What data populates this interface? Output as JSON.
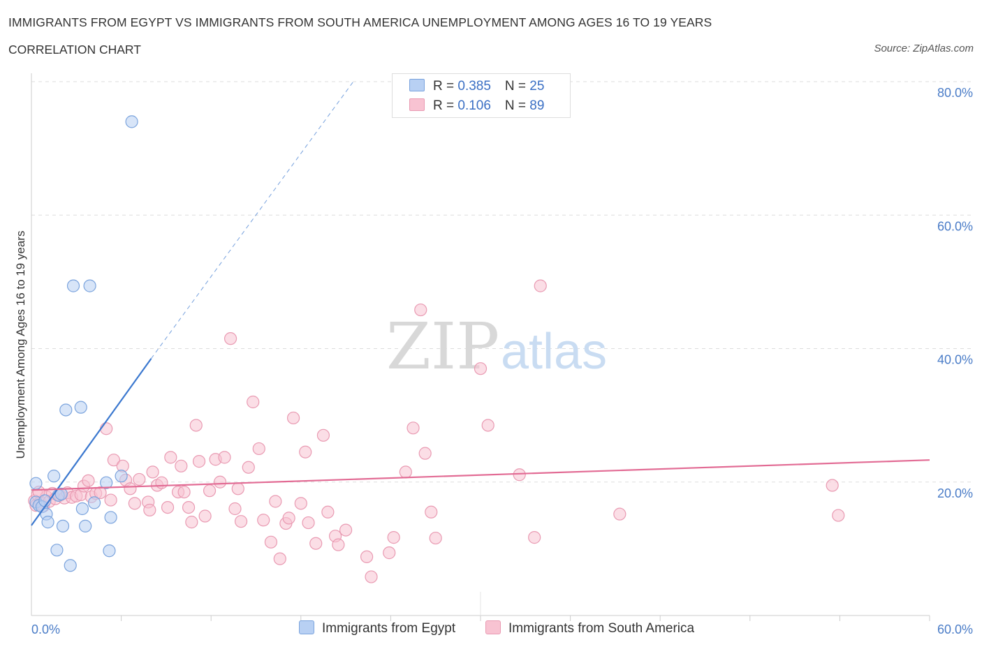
{
  "header": {
    "title": "IMMIGRANTS FROM EGYPT VS IMMIGRANTS FROM SOUTH AMERICA UNEMPLOYMENT AMONG AGES 16 TO 19 YEARS",
    "subtitle": "CORRELATION CHART",
    "source": "Source: ZipAtlas.com"
  },
  "watermark": {
    "zip": "ZIP",
    "atlas": "atlas"
  },
  "legend": {
    "egypt": {
      "r_label": "R = ",
      "r_value": "0.385",
      "n_label": "N = ",
      "n_value": "25"
    },
    "south_america": {
      "r_label": "R = ",
      "r_value": "0.106",
      "n_label": "N = ",
      "n_value": "89"
    }
  },
  "colors": {
    "egypt_fill": "#b8d0f3",
    "egypt_stroke": "#7aa3dd",
    "egypt_line": "#3b78cf",
    "sa_fill": "#f8c3d2",
    "sa_stroke": "#e99ab2",
    "sa_line": "#e26b94",
    "tick": "#4a7cc7",
    "grid": "#dddddd"
  },
  "chart_data": {
    "type": "scatter",
    "title": "IMMIGRANTS FROM EGYPT VS IMMIGRANTS FROM SOUTH AMERICA UNEMPLOYMENT AMONG AGES 16 TO 19 YEARS",
    "xlabel": "",
    "ylabel": "Unemployment Among Ages 16 to 19 years",
    "xlim": [
      0,
      60
    ],
    "ylim": [
      0,
      80
    ],
    "x_tick_labels": [
      "0.0%",
      "60.0%"
    ],
    "y_tick_labels": [
      "20.0%",
      "40.0%",
      "60.0%",
      "80.0%"
    ],
    "y_ticks": [
      20,
      40,
      60,
      80
    ],
    "legend_position": "top-center",
    "series": [
      {
        "name": "Immigrants from Egypt",
        "r": 0.385,
        "n": 25,
        "trend": {
          "x0": 0,
          "y0": 13.5,
          "x1": 8,
          "y1": 38.5,
          "dashed_to_x": 21.5,
          "dashed_to_y": 80
        },
        "points": [
          [
            0.3,
            19.8
          ],
          [
            0.3,
            17.0
          ],
          [
            0.5,
            16.5
          ],
          [
            0.7,
            16.3
          ],
          [
            1.0,
            15.2
          ],
          [
            1.1,
            14.0
          ],
          [
            1.5,
            20.9
          ],
          [
            1.7,
            9.8
          ],
          [
            2.1,
            13.4
          ],
          [
            2.3,
            30.8
          ],
          [
            2.6,
            7.5
          ],
          [
            2.8,
            49.4
          ],
          [
            3.3,
            31.2
          ],
          [
            3.4,
            16.0
          ],
          [
            3.6,
            13.4
          ],
          [
            3.9,
            49.4
          ],
          [
            4.2,
            16.9
          ],
          [
            5.0,
            19.9
          ],
          [
            5.2,
            9.7
          ],
          [
            5.3,
            14.7
          ],
          [
            6.0,
            20.9
          ],
          [
            6.7,
            74.0
          ],
          [
            1.8,
            18.0
          ],
          [
            2.0,
            18.2
          ],
          [
            0.9,
            17.2
          ]
        ]
      },
      {
        "name": "Immigrants from South America",
        "r": 0.106,
        "n": 89,
        "trend": {
          "x0": 0,
          "y0": 18.8,
          "x1": 60,
          "y1": 23.3
        },
        "points": [
          [
            0.2,
            17.2
          ],
          [
            0.3,
            16.5
          ],
          [
            0.4,
            18.1
          ],
          [
            0.6,
            17.0
          ],
          [
            0.8,
            16.4
          ],
          [
            1.0,
            17.8
          ],
          [
            1.2,
            17.1
          ],
          [
            1.4,
            18.3
          ],
          [
            1.6,
            17.5
          ],
          [
            1.9,
            18.0
          ],
          [
            2.2,
            17.6
          ],
          [
            2.4,
            18.4
          ],
          [
            2.7,
            17.7
          ],
          [
            3.0,
            17.9
          ],
          [
            3.3,
            18.1
          ],
          [
            3.5,
            19.4
          ],
          [
            3.8,
            20.2
          ],
          [
            4.0,
            17.8
          ],
          [
            4.3,
            18.3
          ],
          [
            4.6,
            18.4
          ],
          [
            5.0,
            28.0
          ],
          [
            5.3,
            17.3
          ],
          [
            5.5,
            23.3
          ],
          [
            6.1,
            22.4
          ],
          [
            6.3,
            20.3
          ],
          [
            6.6,
            19.0
          ],
          [
            6.9,
            16.8
          ],
          [
            7.2,
            20.4
          ],
          [
            7.8,
            17.0
          ],
          [
            7.9,
            15.8
          ],
          [
            8.1,
            21.5
          ],
          [
            8.4,
            19.5
          ],
          [
            8.7,
            19.9
          ],
          [
            9.1,
            16.2
          ],
          [
            9.3,
            23.7
          ],
          [
            9.8,
            18.5
          ],
          [
            10.0,
            22.4
          ],
          [
            10.2,
            18.5
          ],
          [
            10.5,
            16.2
          ],
          [
            10.7,
            14.0
          ],
          [
            11.0,
            28.5
          ],
          [
            11.2,
            23.1
          ],
          [
            11.6,
            14.9
          ],
          [
            11.9,
            18.7
          ],
          [
            12.3,
            23.4
          ],
          [
            12.6,
            20.0
          ],
          [
            12.9,
            23.7
          ],
          [
            13.3,
            41.5
          ],
          [
            13.6,
            16.0
          ],
          [
            13.8,
            19.0
          ],
          [
            14.0,
            14.1
          ],
          [
            14.5,
            22.2
          ],
          [
            14.8,
            32.0
          ],
          [
            15.2,
            25.0
          ],
          [
            15.5,
            14.3
          ],
          [
            16.0,
            11.0
          ],
          [
            16.3,
            17.1
          ],
          [
            16.6,
            8.5
          ],
          [
            17.0,
            13.8
          ],
          [
            17.2,
            14.6
          ],
          [
            17.5,
            29.6
          ],
          [
            18.0,
            16.8
          ],
          [
            18.3,
            24.5
          ],
          [
            18.5,
            13.9
          ],
          [
            19.0,
            10.8
          ],
          [
            19.5,
            27.0
          ],
          [
            19.8,
            15.5
          ],
          [
            20.3,
            11.9
          ],
          [
            20.5,
            10.6
          ],
          [
            21.0,
            12.8
          ],
          [
            22.4,
            8.8
          ],
          [
            22.7,
            5.8
          ],
          [
            23.9,
            9.4
          ],
          [
            24.2,
            11.7
          ],
          [
            25.0,
            21.5
          ],
          [
            25.5,
            28.1
          ],
          [
            26.0,
            45.8
          ],
          [
            26.3,
            24.3
          ],
          [
            26.7,
            15.5
          ],
          [
            27.0,
            11.6
          ],
          [
            30.0,
            37.0
          ],
          [
            30.5,
            28.5
          ],
          [
            32.6,
            21.1
          ],
          [
            34.0,
            49.4
          ],
          [
            33.6,
            11.7
          ],
          [
            39.3,
            15.2
          ],
          [
            53.5,
            19.5
          ],
          [
            53.9,
            15.0
          ],
          [
            0.5,
            18.5
          ]
        ]
      }
    ]
  },
  "bottom_legend": {
    "egypt_label": "Immigrants from Egypt",
    "sa_label": "Immigrants from South America"
  }
}
